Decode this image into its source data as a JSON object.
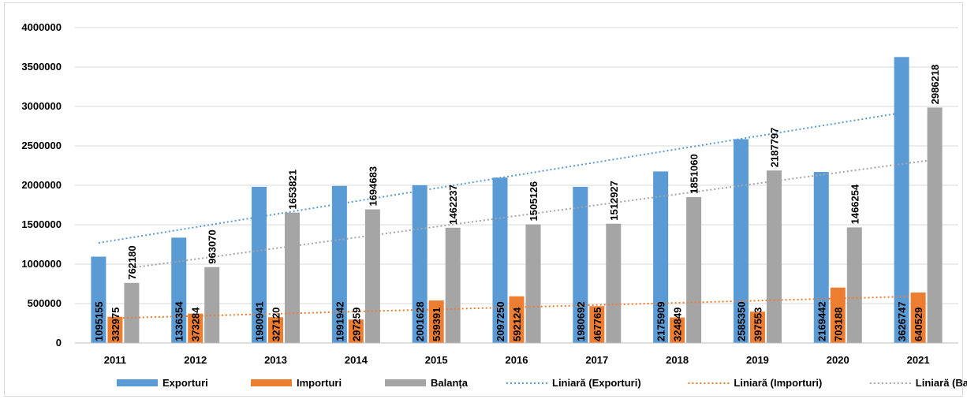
{
  "chart_data": {
    "type": "bar",
    "categories": [
      "2011",
      "2012",
      "2013",
      "2014",
      "2015",
      "2016",
      "2017",
      "2018",
      "2019",
      "2020",
      "2021"
    ],
    "series": [
      {
        "name": "Exporturi",
        "color": "#5b9bd5",
        "values": [
          1095155,
          1336354,
          1980941,
          1991942,
          2001628,
          2097250,
          1980692,
          2175909,
          2585350,
          2169442,
          3626747
        ]
      },
      {
        "name": "Importuri",
        "color": "#ed7d31",
        "values": [
          332975,
          373284,
          327120,
          297259,
          539391,
          592124,
          467765,
          324849,
          397553,
          703188,
          640529
        ]
      },
      {
        "name": "Balanța",
        "color": "#a5a5a5",
        "values": [
          762180,
          963070,
          1653821,
          1694683,
          1462237,
          1505126,
          1512927,
          1851060,
          2187797,
          1466254,
          2986218
        ]
      }
    ],
    "trendlines": [
      {
        "name": "Liniară (Exporturi)",
        "series": "Exporturi",
        "color": "#5b9bd5",
        "style": "dotted",
        "type": "linear"
      },
      {
        "name": "Liniară (Importuri)",
        "series": "Importuri",
        "color": "#ed7d31",
        "style": "dotted",
        "type": "linear"
      },
      {
        "name": "Liniară (Balanța)",
        "series": "Balanța",
        "color": "#a5a5a5",
        "style": "dotted",
        "type": "linear"
      }
    ],
    "y_ticks": [
      "0",
      "500000",
      "1000000",
      "1500000",
      "2000000",
      "2500000",
      "3000000",
      "3500000",
      "4000000"
    ],
    "ylim": [
      0,
      4000000
    ],
    "grid": true,
    "legend_position": "bottom",
    "data_labels": "vertical",
    "title": "",
    "xlabel": "",
    "ylabel": ""
  }
}
